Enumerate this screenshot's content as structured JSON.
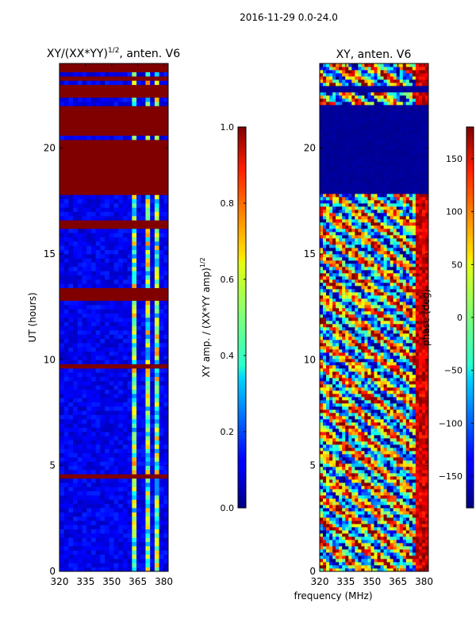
{
  "figure": {
    "suptitle": "2016-11-29 0.0-24.0",
    "xlabel": "frequency (MHz)"
  },
  "chart_data": [
    {
      "type": "heatmap",
      "title_main": "XY/(XX*YY)",
      "title_sup": "1/2",
      "title_rest": ", anten. V6",
      "ylabel": "UT (hours)",
      "xlim": [
        320,
        382.5
      ],
      "ylim": [
        0,
        24
      ],
      "xticks": [
        320,
        335,
        350,
        365,
        380
      ],
      "yticks": [
        0,
        5,
        10,
        15,
        20
      ],
      "colorbar": {
        "label_main": "XY amp. / (XX*YY amp)",
        "label_sup": "1/2",
        "range": [
          0.0,
          1.0
        ],
        "ticks": [
          0.0,
          0.2,
          0.4,
          0.6,
          0.8,
          1.0
        ],
        "tick_labels": [
          "0.0",
          "0.2",
          "0.4",
          "0.6",
          "0.8",
          "1.0"
        ]
      },
      "flagged_hour_ranges": [
        [
          0.0,
          0.1
        ],
        [
          4.4,
          4.6
        ],
        [
          9.6,
          9.8
        ],
        [
          12.9,
          13.4
        ],
        [
          15.2,
          15.3
        ],
        [
          16.2,
          16.6
        ],
        [
          17.9,
          20.5
        ],
        [
          20.6,
          22.1
        ],
        [
          22.5,
          23.0
        ],
        [
          23.3,
          23.4
        ],
        [
          23.7,
          24.0
        ]
      ],
      "high_amplitude_band_MHz": [
        [
          362,
          365
        ],
        [
          366,
          368
        ],
        [
          369,
          371
        ],
        [
          374,
          376
        ]
      ]
    },
    {
      "type": "heatmap",
      "title": "XY, anten. V6",
      "xlim": [
        320,
        382.5
      ],
      "ylim": [
        0,
        24
      ],
      "xticks": [
        320,
        335,
        350,
        365,
        380
      ],
      "yticks": [
        0,
        5,
        10,
        15,
        20
      ],
      "colorbar": {
        "label": "phase (deg)",
        "range": [
          -180,
          180
        ],
        "ticks": [
          -150,
          -100,
          -50,
          0,
          50,
          100,
          150
        ],
        "tick_labels": [
          "−150",
          "−100",
          "−50",
          "0",
          "50",
          "100",
          "150"
        ]
      },
      "masked_hour_ranges": [
        [
          17.9,
          20.5
        ],
        [
          20.6,
          22.1
        ],
        [
          22.7,
          23.0
        ]
      ]
    }
  ]
}
